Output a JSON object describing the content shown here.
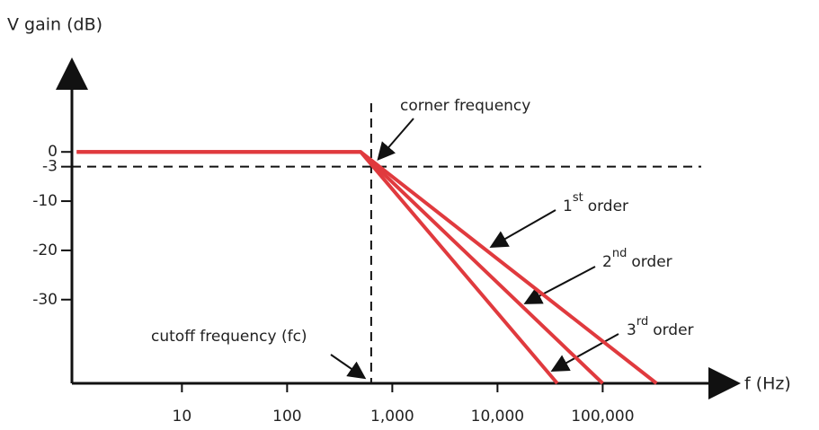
{
  "chart_data": {
    "type": "line",
    "x_log": true,
    "y_label": "V gain (dB)",
    "x_label": "f (Hz)",
    "xlim": [
      0.9,
      1900000
    ],
    "ylim": [
      -47,
      19
    ],
    "xticks": [
      10,
      100,
      {
        "value": 1000,
        "label": "1,000"
      },
      {
        "value": 10000,
        "label": "10,000"
      },
      {
        "value": 100000,
        "label": "100,000"
      }
    ],
    "yticks": [
      0,
      -3,
      -10,
      -20,
      -30
    ],
    "cutoff_x": 630,
    "series": [
      {
        "color": "#e03a3e",
        "x": [
          1,
          500,
          325000
        ],
        "values": [
          0,
          0,
          -47
        ]
      },
      {
        "color": "#e03a3e",
        "x": [
          1,
          500,
          100000
        ],
        "values": [
          0,
          0,
          -47
        ]
      },
      {
        "color": "#e03a3e",
        "x": [
          1,
          500,
          37000
        ],
        "values": [
          0,
          0,
          -47
        ]
      }
    ],
    "annotations": {
      "corner": "corner frequency",
      "cutoff": "cutoff frequency (fc)",
      "orders": [
        {
          "num": "1",
          "sup": "st",
          "word": "order"
        },
        {
          "num": "2",
          "sup": "nd",
          "word": "order"
        },
        {
          "num": "3",
          "sup": "rd",
          "word": "order"
        }
      ]
    }
  }
}
